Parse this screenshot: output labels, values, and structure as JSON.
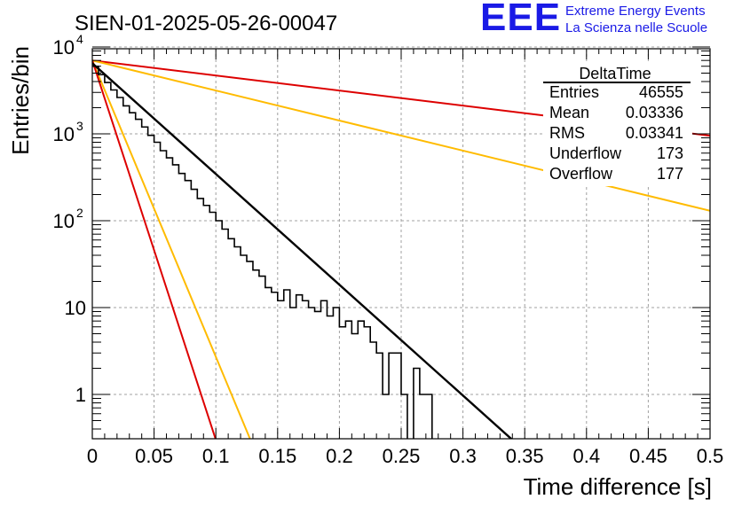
{
  "header": {
    "run_title": "SIEN-01-2025-05-26-00047",
    "brand_logo": "EEE",
    "brand_line1": "Extreme Energy Events",
    "brand_line2": "La Scienza nelle Scuole"
  },
  "stats_box": {
    "title": "DeltaTime",
    "rows": [
      {
        "label": "Entries",
        "value": "46555"
      },
      {
        "label": "Mean",
        "value": "0.03336"
      },
      {
        "label": "RMS",
        "value": "0.03341"
      },
      {
        "label": "Underflow",
        "value": "173"
      },
      {
        "label": "Overflow",
        "value": "177"
      }
    ]
  },
  "colors": {
    "histogram": "#000000",
    "fit": "#000000",
    "red": "#dd0000",
    "orange": "#ffbb00",
    "grid": "#a0a0a0"
  },
  "chart_data": {
    "type": "histogram",
    "title": "SIEN-01-2025-05-26-00047",
    "xlabel": "Time difference [s]",
    "ylabel": "Entries/bin",
    "xlim": [
      0,
      0.5
    ],
    "ylim_log": [
      0.3,
      12000
    ],
    "xscale": "linear",
    "yscale": "log",
    "grid": true,
    "x_ticks": [
      "0",
      "0.05",
      "0.1",
      "0.15",
      "0.2",
      "0.25",
      "0.3",
      "0.35",
      "0.4",
      "0.45",
      "0.5"
    ],
    "y_ticks": [
      {
        "value": 1,
        "label": "1"
      },
      {
        "value": 10,
        "label": "10"
      },
      {
        "value": 100,
        "label": "10",
        "exp": "2"
      },
      {
        "value": 1000,
        "label": "10",
        "exp": "3"
      },
      {
        "value": 10000,
        "label": "10",
        "exp": "4"
      }
    ],
    "bin_width": 0.005,
    "histogram_counts": [
      6000,
      4800,
      3900,
      3200,
      2620,
      2100,
      1750,
      1470,
      1200,
      960,
      800,
      640,
      530,
      440,
      350,
      290,
      230,
      180,
      150,
      125,
      100,
      80,
      62,
      50,
      40,
      34,
      27,
      23,
      17,
      15,
      12,
      16,
      10,
      14,
      12,
      10,
      9,
      12,
      8,
      10,
      6,
      7,
      5,
      7,
      6,
      4,
      3,
      1,
      3,
      3,
      1,
      0,
      2,
      1,
      1,
      0,
      0,
      0,
      0,
      0,
      0,
      0,
      0,
      0,
      0,
      0,
      0,
      0,
      0,
      0,
      0,
      0,
      0,
      0,
      0,
      0,
      0,
      0,
      0,
      0,
      0,
      0,
      0,
      0,
      0,
      0,
      0,
      0,
      0,
      0,
      0,
      0,
      0,
      0,
      0,
      0,
      0,
      0,
      0,
      0
    ],
    "lines": [
      {
        "name": "fit",
        "color": "#000000",
        "x": [
          0,
          0.34
        ],
        "y": [
          6500,
          0.3
        ]
      },
      {
        "name": "red-slow",
        "color": "#dd0000",
        "x": [
          0,
          0.5
        ],
        "y": [
          7000,
          950
        ]
      },
      {
        "name": "orange-slow",
        "color": "#ffbb00",
        "x": [
          0,
          0.5
        ],
        "y": [
          7000,
          130
        ]
      },
      {
        "name": "orange-fast",
        "color": "#ffbb00",
        "x": [
          0,
          0.128
        ],
        "y": [
          7000,
          0.3
        ]
      },
      {
        "name": "red-fast",
        "color": "#dd0000",
        "x": [
          0,
          0.1
        ],
        "y": [
          7000,
          0.3
        ]
      }
    ]
  }
}
